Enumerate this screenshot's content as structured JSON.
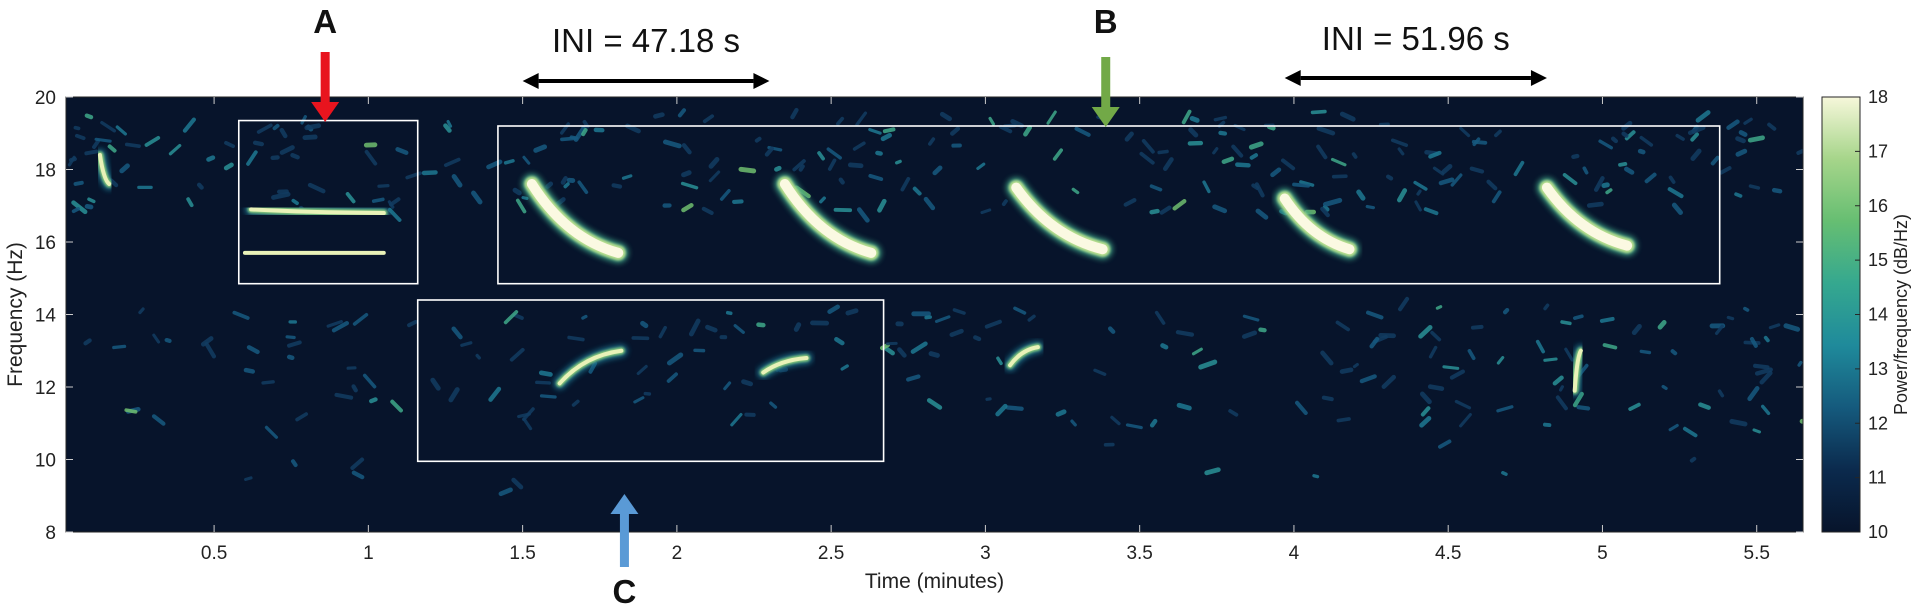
{
  "chart_data": {
    "type": "heatmap",
    "xlabel": "Time (minutes)",
    "ylabel": "Frequency (Hz)",
    "xlim": [
      0.02,
      5.65
    ],
    "ylim": [
      8,
      20
    ],
    "xticks": [
      0.5,
      1,
      1.5,
      2,
      2.5,
      3,
      3.5,
      4,
      4.5,
      5,
      5.5
    ],
    "xtick_labels": [
      "0.5",
      "1",
      "1.5",
      "2",
      "2.5",
      "3",
      "3.5",
      "4",
      "4.5",
      "5",
      "5.5"
    ],
    "yticks": [
      8,
      10,
      12,
      14,
      16,
      18,
      20
    ],
    "ytick_labels": [
      "8",
      "10",
      "12",
      "14",
      "16",
      "18",
      "20"
    ],
    "colorbar": {
      "label": "Power/frequency (dB/Hz)",
      "range": [
        10,
        18
      ],
      "ticks": [
        10,
        11,
        12,
        13,
        14,
        15,
        16,
        17,
        18
      ],
      "tick_labels": [
        "10",
        "11",
        "12",
        "13",
        "14",
        "15",
        "16",
        "17",
        "18"
      ],
      "colors": [
        "#07142b",
        "#0b2a4d",
        "#155a7d",
        "#1f8a9b",
        "#35a88f",
        "#66be72",
        "#a6d58a",
        "#f6f7da"
      ]
    },
    "background_color": "#07142b",
    "calls_strong": [
      {
        "t0": 1.53,
        "t1": 1.81,
        "f0": 17.6,
        "f1": 15.7
      },
      {
        "t0": 2.35,
        "t1": 2.63,
        "f0": 17.6,
        "f1": 15.7
      },
      {
        "t0": 3.1,
        "t1": 3.38,
        "f0": 17.5,
        "f1": 15.8
      },
      {
        "t0": 3.97,
        "t1": 4.18,
        "f0": 17.2,
        "f1": 15.8
      },
      {
        "t0": 4.82,
        "t1": 5.08,
        "f0": 17.5,
        "f1": 15.9
      }
    ],
    "calls_medium": [
      {
        "t0": 0.62,
        "t1": 1.05,
        "f0": 16.9,
        "f1": 16.8
      },
      {
        "t0": 0.6,
        "t1": 1.05,
        "f0": 15.7,
        "f1": 15.7
      },
      {
        "t0": 1.62,
        "t1": 1.82,
        "f0": 12.1,
        "f1": 13.0
      },
      {
        "t0": 2.28,
        "t1": 2.42,
        "f0": 12.4,
        "f1": 12.8
      },
      {
        "t0": 3.08,
        "t1": 3.17,
        "f0": 12.6,
        "f1": 13.1
      },
      {
        "t0": 4.91,
        "t1": 4.93,
        "f0": 11.9,
        "f1": 13.0
      },
      {
        "t0": 0.13,
        "t1": 0.16,
        "f0": 18.4,
        "f1": 17.6
      }
    ],
    "boxes": [
      {
        "name": "box-a",
        "x0": 0.58,
        "x1": 1.16,
        "y0": 14.85,
        "y1": 19.35
      },
      {
        "name": "box-b",
        "x0": 1.42,
        "x1": 5.38,
        "y0": 14.85,
        "y1": 19.2
      },
      {
        "name": "box-c",
        "x0": 1.16,
        "x1": 2.67,
        "y0": 9.95,
        "y1": 14.4
      }
    ],
    "annotations": {
      "label_a": "A",
      "label_b": "B",
      "label_c": "C",
      "ini_1": "INI = 47.18 s",
      "ini_2": "INI = 51.96 s",
      "arrow_a_color": "#e8141e",
      "arrow_b_color": "#72a947",
      "arrow_c_color": "#5a9ad6",
      "arrow_a_t": 0.86,
      "arrow_b_t": 3.39,
      "arrow_c_t": 1.83,
      "ini_1_span": [
        1.5,
        2.3
      ],
      "ini_2_span": [
        3.97,
        4.82
      ]
    }
  }
}
